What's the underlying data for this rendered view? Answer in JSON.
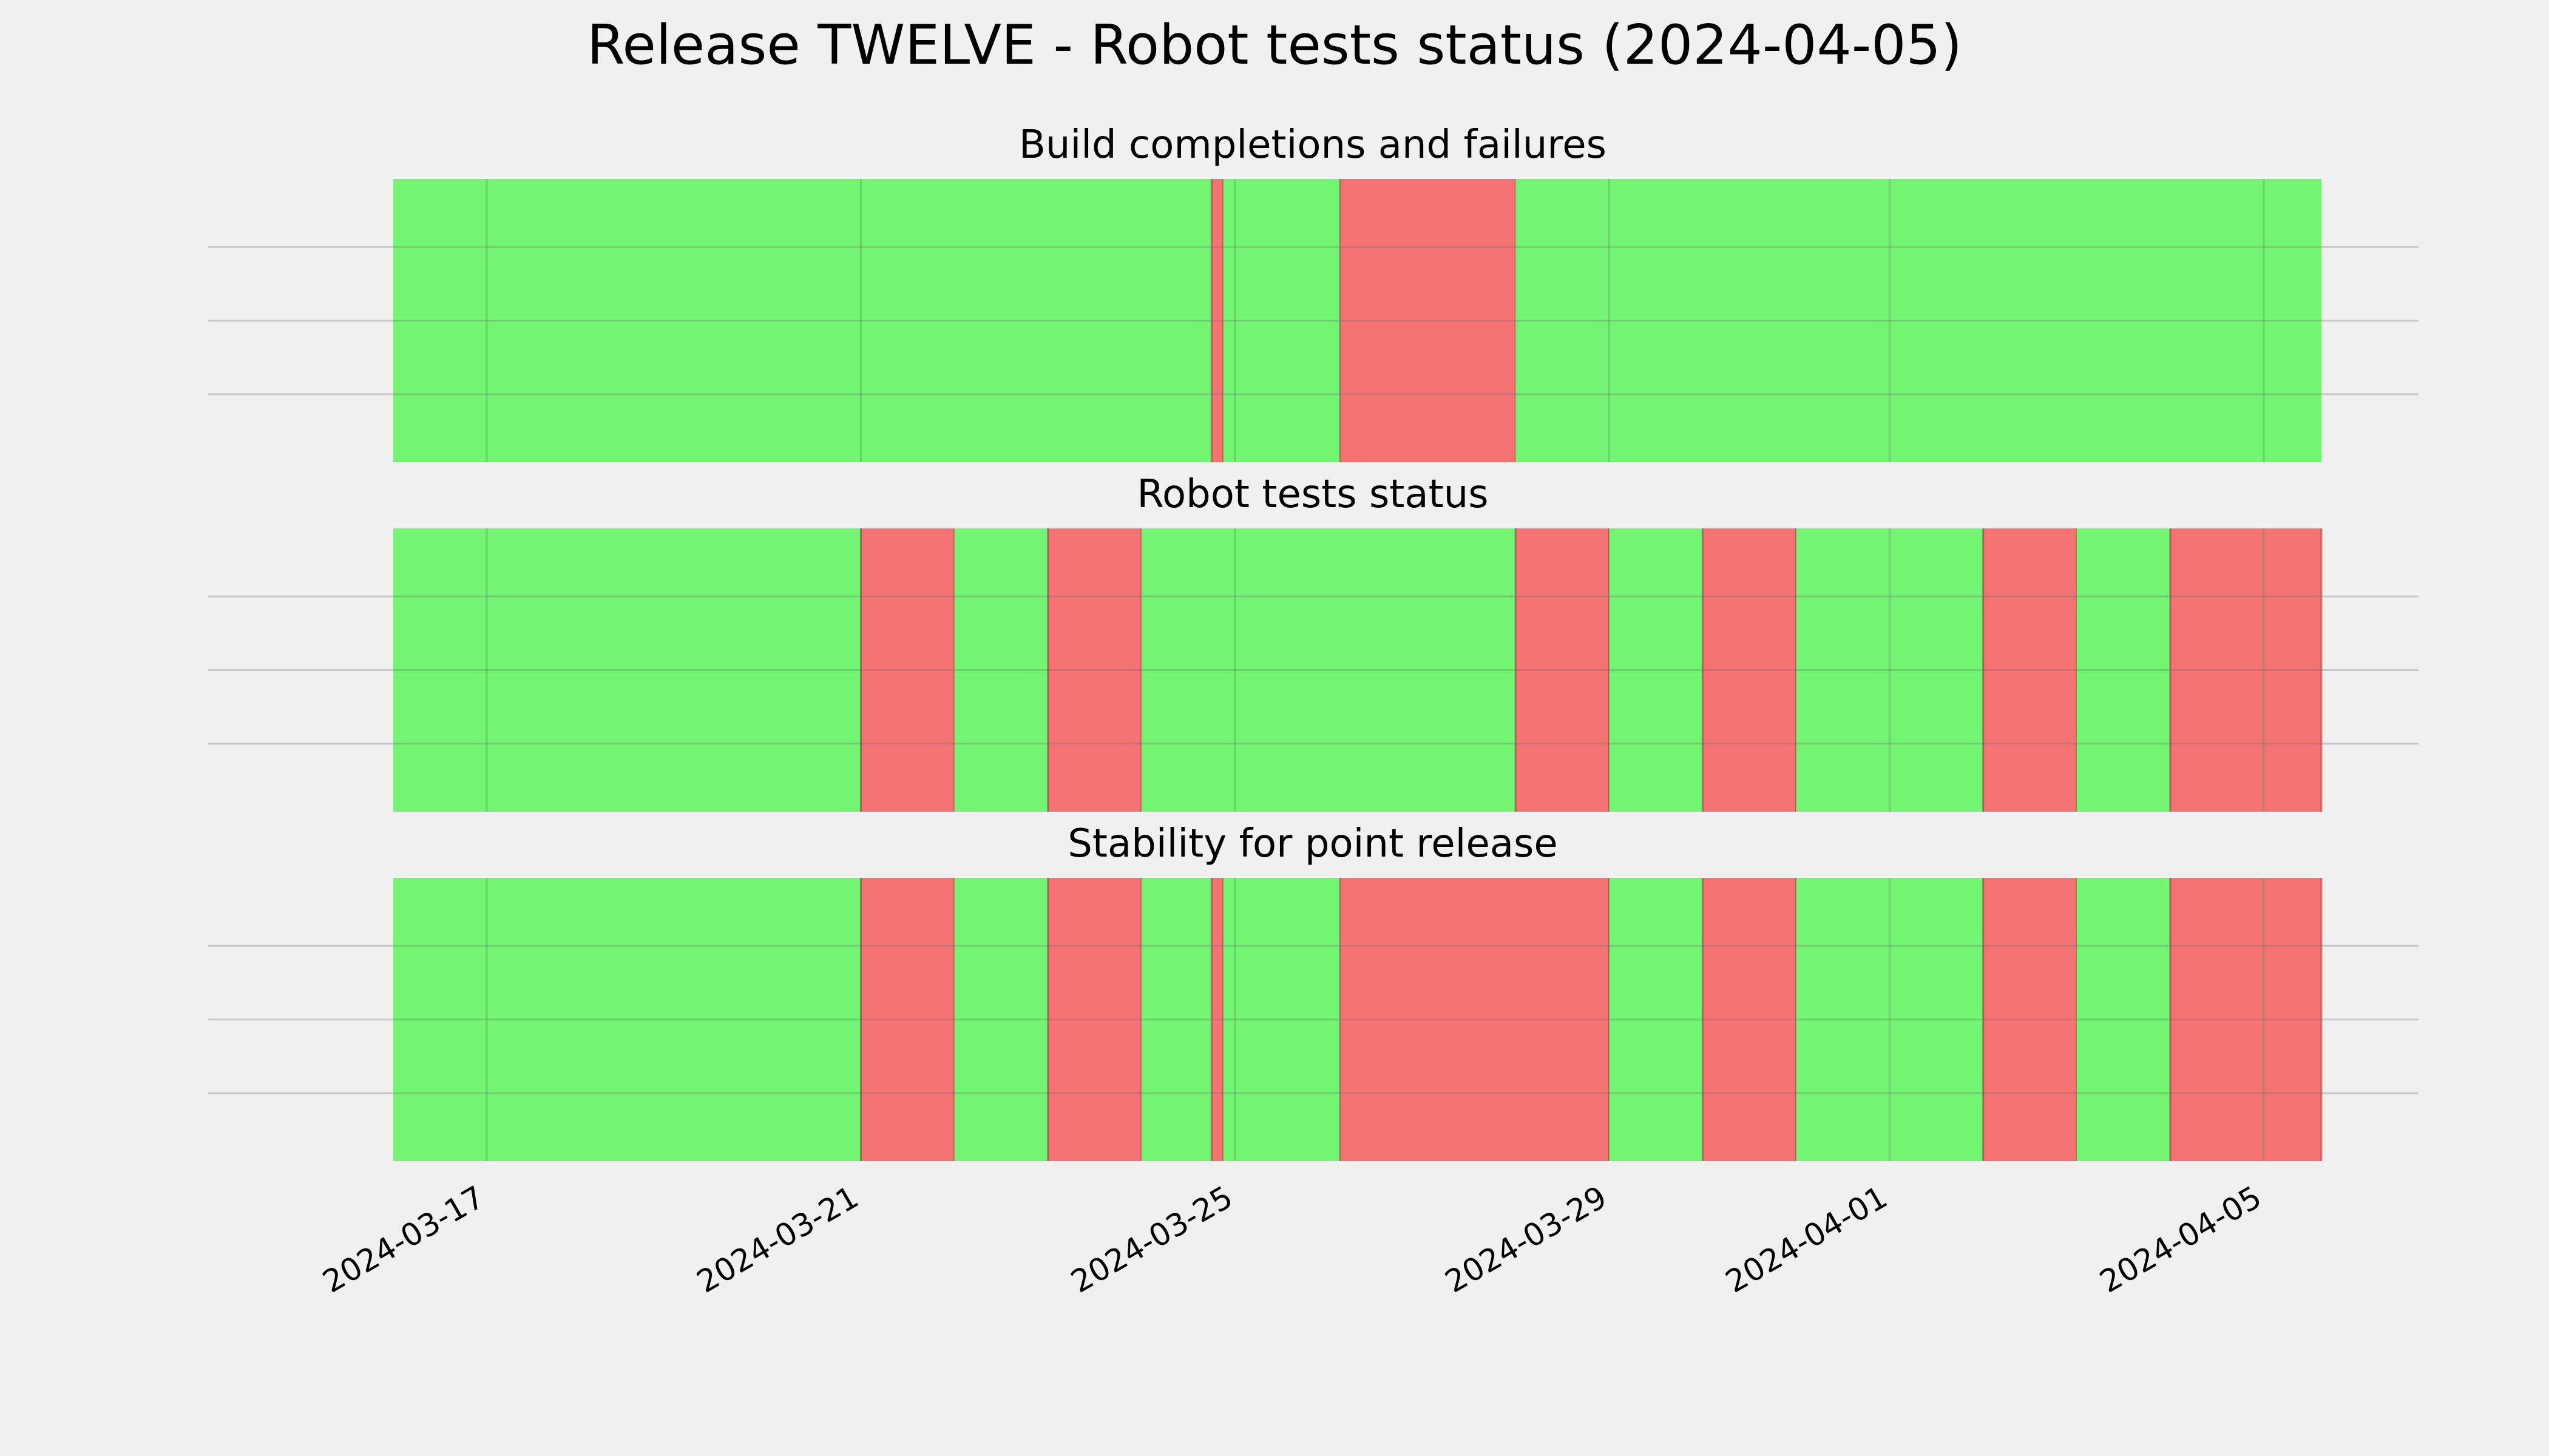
{
  "chart_data": {
    "type": "timeline",
    "title": "Release TWELVE - Robot tests status (2024-04-05)",
    "x_range": [
      "2024-03-16",
      "2024-04-05T15:00"
    ],
    "x_ticks": [
      "2024-03-17",
      "2024-03-21",
      "2024-03-25",
      "2024-03-29",
      "2024-04-01",
      "2024-04-05"
    ],
    "status_colors": {
      "pass": "#73f573",
      "fail": "#f57373"
    },
    "grid": true,
    "panels": [
      {
        "title": "Build completions and failures",
        "segments": [
          {
            "start": "2024-03-16T00:00",
            "end": "2024-03-24T18:00",
            "status": "pass"
          },
          {
            "start": "2024-03-24T18:00",
            "end": "2024-03-24T21:00",
            "status": "fail"
          },
          {
            "start": "2024-03-24T21:00",
            "end": "2024-03-26T03:00",
            "status": "pass"
          },
          {
            "start": "2024-03-26T03:00",
            "end": "2024-03-28T00:00",
            "status": "fail"
          },
          {
            "start": "2024-03-28T00:00",
            "end": "2024-04-05T15:00",
            "status": "pass"
          }
        ]
      },
      {
        "title": "Robot tests status",
        "segments": [
          {
            "start": "2024-03-16T00:00",
            "end": "2024-03-21T00:00",
            "status": "pass"
          },
          {
            "start": "2024-03-21T00:00",
            "end": "2024-03-22T00:00",
            "status": "fail"
          },
          {
            "start": "2024-03-22T00:00",
            "end": "2024-03-23T00:00",
            "status": "pass"
          },
          {
            "start": "2024-03-23T00:00",
            "end": "2024-03-24T00:00",
            "status": "fail"
          },
          {
            "start": "2024-03-24T00:00",
            "end": "2024-03-28T00:00",
            "status": "pass"
          },
          {
            "start": "2024-03-28T00:00",
            "end": "2024-03-29T00:00",
            "status": "fail"
          },
          {
            "start": "2024-03-29T00:00",
            "end": "2024-03-30T00:00",
            "status": "pass"
          },
          {
            "start": "2024-03-30T00:00",
            "end": "2024-03-31T00:00",
            "status": "fail"
          },
          {
            "start": "2024-03-31T00:00",
            "end": "2024-04-02T00:00",
            "status": "pass"
          },
          {
            "start": "2024-04-02T00:00",
            "end": "2024-04-03T00:00",
            "status": "fail"
          },
          {
            "start": "2024-04-03T00:00",
            "end": "2024-04-04T00:00",
            "status": "pass"
          },
          {
            "start": "2024-04-04T00:00",
            "end": "2024-04-06T00:00",
            "status": "fail"
          },
          {
            "start": "2024-04-06T00:00",
            "end": "2024-04-05T15:00",
            "status": "pass"
          }
        ]
      },
      {
        "title": "Stability for point release",
        "segments": [
          {
            "start": "2024-03-16T00:00",
            "end": "2024-03-21T00:00",
            "status": "pass"
          },
          {
            "start": "2024-03-21T00:00",
            "end": "2024-03-22T00:00",
            "status": "fail"
          },
          {
            "start": "2024-03-22T00:00",
            "end": "2024-03-23T00:00",
            "status": "pass"
          },
          {
            "start": "2024-03-23T00:00",
            "end": "2024-03-24T00:00",
            "status": "fail"
          },
          {
            "start": "2024-03-24T00:00",
            "end": "2024-03-24T18:00",
            "status": "pass"
          },
          {
            "start": "2024-03-24T18:00",
            "end": "2024-03-24T21:00",
            "status": "fail"
          },
          {
            "start": "2024-03-24T21:00",
            "end": "2024-03-26T03:00",
            "status": "pass"
          },
          {
            "start": "2024-03-26T03:00",
            "end": "2024-03-29T00:00",
            "status": "fail"
          },
          {
            "start": "2024-03-29T00:00",
            "end": "2024-03-30T00:00",
            "status": "pass"
          },
          {
            "start": "2024-03-30T00:00",
            "end": "2024-03-31T00:00",
            "status": "fail"
          },
          {
            "start": "2024-03-31T00:00",
            "end": "2024-04-02T00:00",
            "status": "pass"
          },
          {
            "start": "2024-04-02T00:00",
            "end": "2024-04-03T00:00",
            "status": "fail"
          },
          {
            "start": "2024-04-03T00:00",
            "end": "2024-04-04T00:00",
            "status": "pass"
          },
          {
            "start": "2024-04-04T00:00",
            "end": "2024-04-06T00:00",
            "status": "fail"
          },
          {
            "start": "2024-04-06T00:00",
            "end": "2024-04-05T15:00",
            "status": "pass"
          }
        ]
      }
    ]
  }
}
